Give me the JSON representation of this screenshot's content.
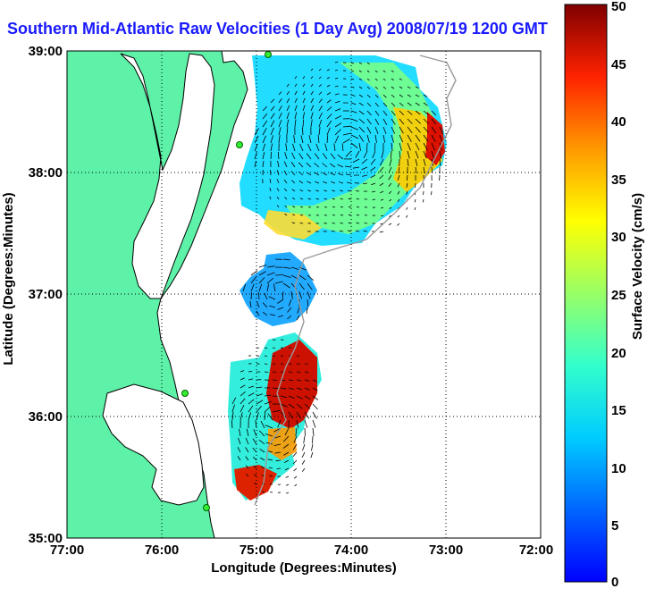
{
  "title": "Southern Mid-Atlantic Raw Velocities (1 Day Avg) 2008/07/19 1200 GMT",
  "map": {
    "xlabel": "Longitude (Degrees:Minutes)",
    "ylabel": "Latitude (Degrees:Minutes)",
    "x_ticks": [
      "77:00",
      "76:00",
      "75:00",
      "74:00",
      "73:00",
      "72:00"
    ],
    "y_ticks": [
      "39:00",
      "38:00",
      "37:00",
      "36:00",
      "35:00"
    ],
    "xlim": [
      -77,
      -72
    ],
    "ylim": [
      35,
      39
    ],
    "land_color": "#5ef2a8",
    "coast_color": "#000000",
    "grid": "dotted"
  },
  "colorbar": {
    "label": "Surface Velocity (cm/s)",
    "ticks": [
      "50",
      "45",
      "40",
      "35",
      "30",
      "25",
      "20",
      "15",
      "10",
      "5",
      "0"
    ],
    "range": [
      0,
      50
    ],
    "colormap": "jet"
  }
}
